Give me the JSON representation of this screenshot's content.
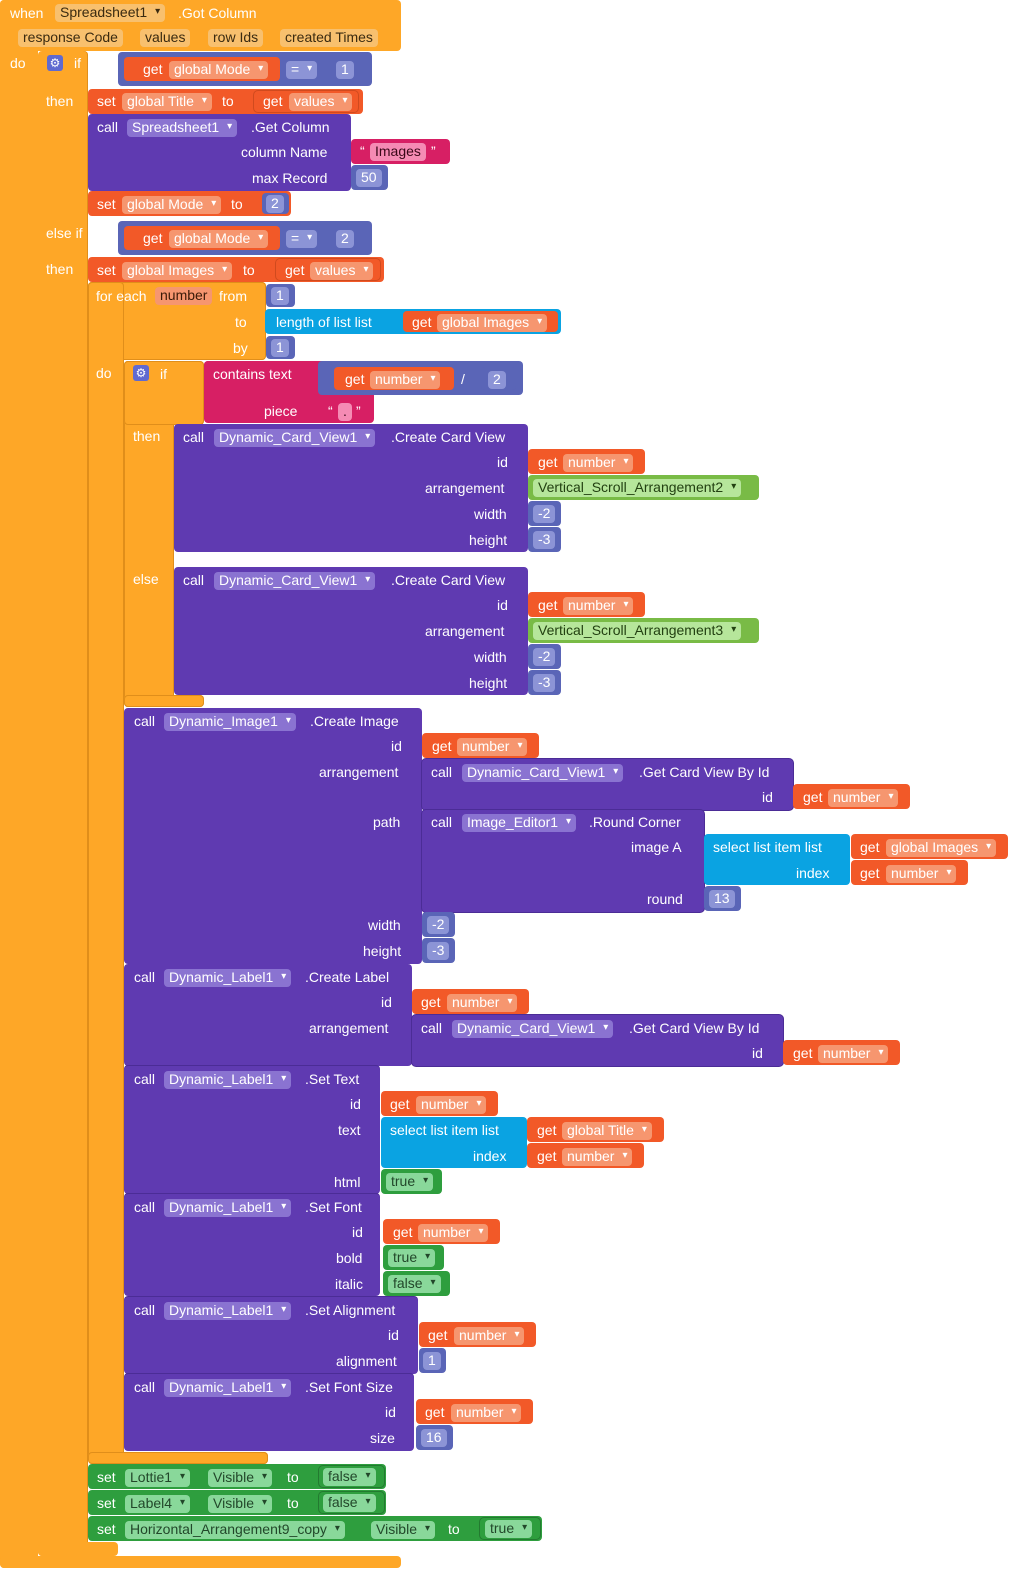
{
  "event": {
    "when": "when",
    "component": "Spreadsheet1",
    "name": ".Got Column",
    "params": [
      "response Code",
      "values",
      "row Ids",
      "created Times"
    ],
    "do": "do"
  },
  "kw": {
    "if": "if",
    "then": "then",
    "else_if": "else if",
    "else": "else",
    "do": "do",
    "set": "set",
    "to": "to",
    "get": "get",
    "call": "call",
    "for_each": "for each",
    "from": "from",
    "by": "by",
    "contains_text": "contains text",
    "piece": "piece",
    "length_of_list": "length of list  list",
    "select_list_item": "select list item  list",
    "index": "index",
    "quote": "“",
    "quote_close": "”"
  },
  "vars": {
    "global_mode": "global Mode",
    "global_title": "global Title",
    "global_images": "global Images",
    "values": "values",
    "number": "number"
  },
  "ops": {
    "eq": "=",
    "div": "/"
  },
  "components": {
    "spreadsheet": "Spreadsheet1",
    "card": "Dynamic_Card_View1",
    "image": "Dynamic_Image1",
    "editor": "Image_Editor1",
    "label": "Dynamic_Label1",
    "lottie": "Lottie1",
    "label4": "Label4",
    "harr": "Horizontal_Arrangement9_copy",
    "vsa2": "Vertical_Scroll_Arrangement2",
    "vsa3": "Vertical_Scroll_Arrangement3"
  },
  "methods": {
    "get_column": ".Get Column",
    "create_card": ".Create Card View",
    "create_image": ".Create Image",
    "get_card_by_id": ".Get Card View By Id",
    "round_corner": ".Round Corner",
    "create_label": ".Create Label",
    "set_text": ".Set Text",
    "set_font": ".Set Font",
    "set_alignment": ".Set Alignment",
    "set_font_size": ".Set Font Size"
  },
  "params": {
    "column_name": "column Name",
    "max_record": "max Record",
    "id": "id",
    "arrangement": "arrangement",
    "width": "width",
    "height": "height",
    "path": "path",
    "image_a": "image A",
    "round": "round",
    "text": "text",
    "html": "html",
    "bold": "bold",
    "italic": "italic",
    "alignment": "alignment",
    "size": "size"
  },
  "literals": {
    "one": "1",
    "two": "2",
    "fifty": "50",
    "images": "Images",
    "dot": ".",
    "neg2": "-2",
    "neg3": "-3",
    "thirteen": "13",
    "sixteen": "16",
    "true": "true",
    "false": "false",
    "visible": "Visible"
  },
  "colors": {
    "event": "#fea727",
    "method": "#5f3ab1",
    "variable": "#f25928",
    "math": "#5a65b7",
    "text": "#d71f64",
    "list": "#0aa3e2",
    "component": "#79bb46",
    "setter": "#2e9e3e"
  }
}
